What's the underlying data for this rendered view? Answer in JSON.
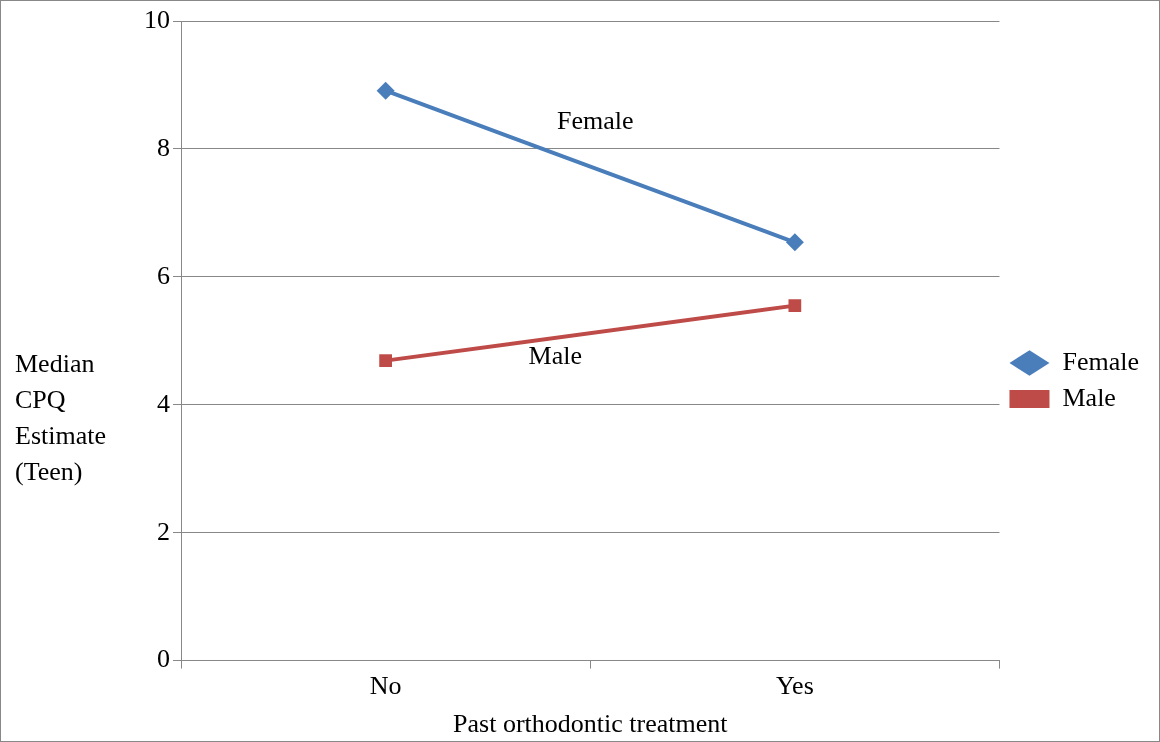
{
  "chart_data": {
    "type": "line",
    "xlabel": "Past orthodontic treatment",
    "ylabel": "Median CPQ Estimate (Teen)",
    "categories": [
      "No",
      "Yes"
    ],
    "series": [
      {
        "name": "Female",
        "color": "#4a7ebb",
        "values": [
          8.91,
          6.54
        ],
        "marker": "diamond"
      },
      {
        "name": "Male",
        "color": "#be4b48",
        "values": [
          4.69,
          5.55
        ],
        "marker": "square"
      }
    ],
    "ylim": [
      0,
      10
    ],
    "yticks": [
      0,
      2,
      4,
      6,
      8,
      10
    ],
    "grid": "y",
    "legend": "right",
    "line_style": "solid",
    "annotations": [
      "Female",
      "Male"
    ]
  }
}
